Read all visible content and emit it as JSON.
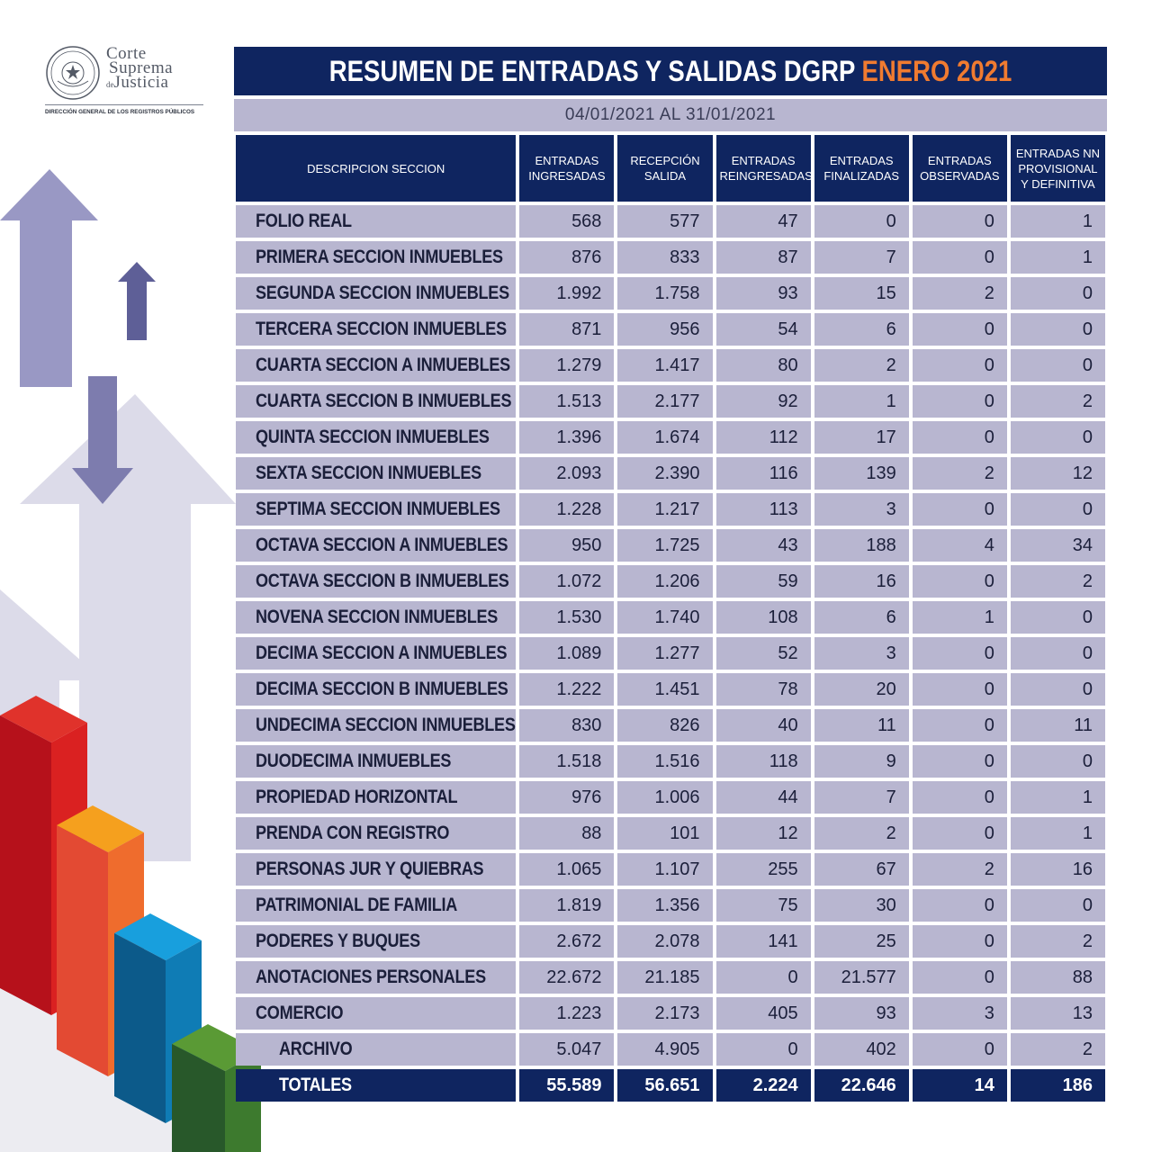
{
  "logo": {
    "line1": "Corte",
    "line2": "Suprema",
    "line3_prefix": "de",
    "line3": "Justicia",
    "subtitle": "DIRECCIÓN GENERAL DE LOS REGISTROS PÚBLICOS",
    "seal_text": "REPÚBLICA DEL PARAGUAY"
  },
  "title": {
    "main": "RESUMEN DE ENTRADAS Y SALIDAS DGRP",
    "highlight": "ENERO 2021",
    "highlight_color": "#f07b30"
  },
  "date_range": "04/01/2021 AL 31/01/2021",
  "colors": {
    "header_bg": "#0f2560",
    "cell_bg": "#b8b6d0"
  },
  "table": {
    "headers": [
      "DESCRIPCION SECCION",
      "ENTRADAS INGRESADAS",
      "RECEPCIÓN SALIDA",
      "ENTRADAS REINGRESADAS",
      "ENTRADAS FINALIZADAS",
      "ENTRADAS OBSERVADAS",
      "ENTRADAS NN PROVISIONAL Y DEFINITIVA"
    ],
    "rows": [
      [
        "FOLIO REAL",
        "568",
        "577",
        "47",
        "0",
        "0",
        "1"
      ],
      [
        "PRIMERA SECCION INMUEBLES",
        "876",
        "833",
        "87",
        "7",
        "0",
        "1"
      ],
      [
        "SEGUNDA SECCION INMUEBLES",
        "1.992",
        "1.758",
        "93",
        "15",
        "2",
        "0"
      ],
      [
        "TERCERA SECCION INMUEBLES",
        "871",
        "956",
        "54",
        "6",
        "0",
        "0"
      ],
      [
        "CUARTA SECCION A INMUEBLES",
        "1.279",
        "1.417",
        "80",
        "2",
        "0",
        "0"
      ],
      [
        "CUARTA SECCION B INMUEBLES",
        "1.513",
        "2.177",
        "92",
        "1",
        "0",
        "2"
      ],
      [
        "QUINTA SECCION INMUEBLES",
        "1.396",
        "1.674",
        "112",
        "17",
        "0",
        "0"
      ],
      [
        "SEXTA SECCION INMUEBLES",
        "2.093",
        "2.390",
        "116",
        "139",
        "2",
        "12"
      ],
      [
        "SEPTIMA SECCION INMUEBLES",
        "1.228",
        "1.217",
        "113",
        "3",
        "0",
        "0"
      ],
      [
        "OCTAVA SECCION A INMUEBLES",
        "950",
        "1.725",
        "43",
        "188",
        "4",
        "34"
      ],
      [
        "OCTAVA SECCION B INMUEBLES",
        "1.072",
        "1.206",
        "59",
        "16",
        "0",
        "2"
      ],
      [
        "NOVENA SECCION INMUEBLES",
        "1.530",
        "1.740",
        "108",
        "6",
        "1",
        "0"
      ],
      [
        "DECIMA SECCION A INMUEBLES",
        "1.089",
        "1.277",
        "52",
        "3",
        "0",
        "0"
      ],
      [
        "DECIMA SECCION B INMUEBLES",
        "1.222",
        "1.451",
        "78",
        "20",
        "0",
        "0"
      ],
      [
        "UNDECIMA SECCION INMUEBLES",
        "830",
        "826",
        "40",
        "11",
        "0",
        "11"
      ],
      [
        "DUODECIMA INMUEBLES",
        "1.518",
        "1.516",
        "118",
        "9",
        "0",
        "0"
      ],
      [
        "PROPIEDAD HORIZONTAL",
        "976",
        "1.006",
        "44",
        "7",
        "0",
        "1"
      ],
      [
        "PRENDA CON REGISTRO",
        "88",
        "101",
        "12",
        "2",
        "0",
        "1"
      ],
      [
        "PERSONAS JUR Y QUIEBRAS",
        "1.065",
        "1.107",
        "255",
        "67",
        "2",
        "16"
      ],
      [
        "PATRIMONIAL DE FAMILIA",
        "1.819",
        "1.356",
        "75",
        "30",
        "0",
        "0"
      ],
      [
        "PODERES Y BUQUES",
        "2.672",
        "2.078",
        "141",
        "25",
        "0",
        "2"
      ],
      [
        "ANOTACIONES PERSONALES",
        "22.672",
        "21.185",
        "0",
        "21.577",
        "0",
        "88"
      ],
      [
        "COMERCIO",
        "1.223",
        "2.173",
        "405",
        "93",
        "3",
        "13"
      ],
      [
        "ARCHIVO",
        "5.047",
        "4.905",
        "0",
        "402",
        "0",
        "2"
      ]
    ],
    "totals": [
      "TOTALES",
      "55.589",
      "56.651",
      "2.224",
      "22.646",
      "14",
      "186"
    ]
  }
}
